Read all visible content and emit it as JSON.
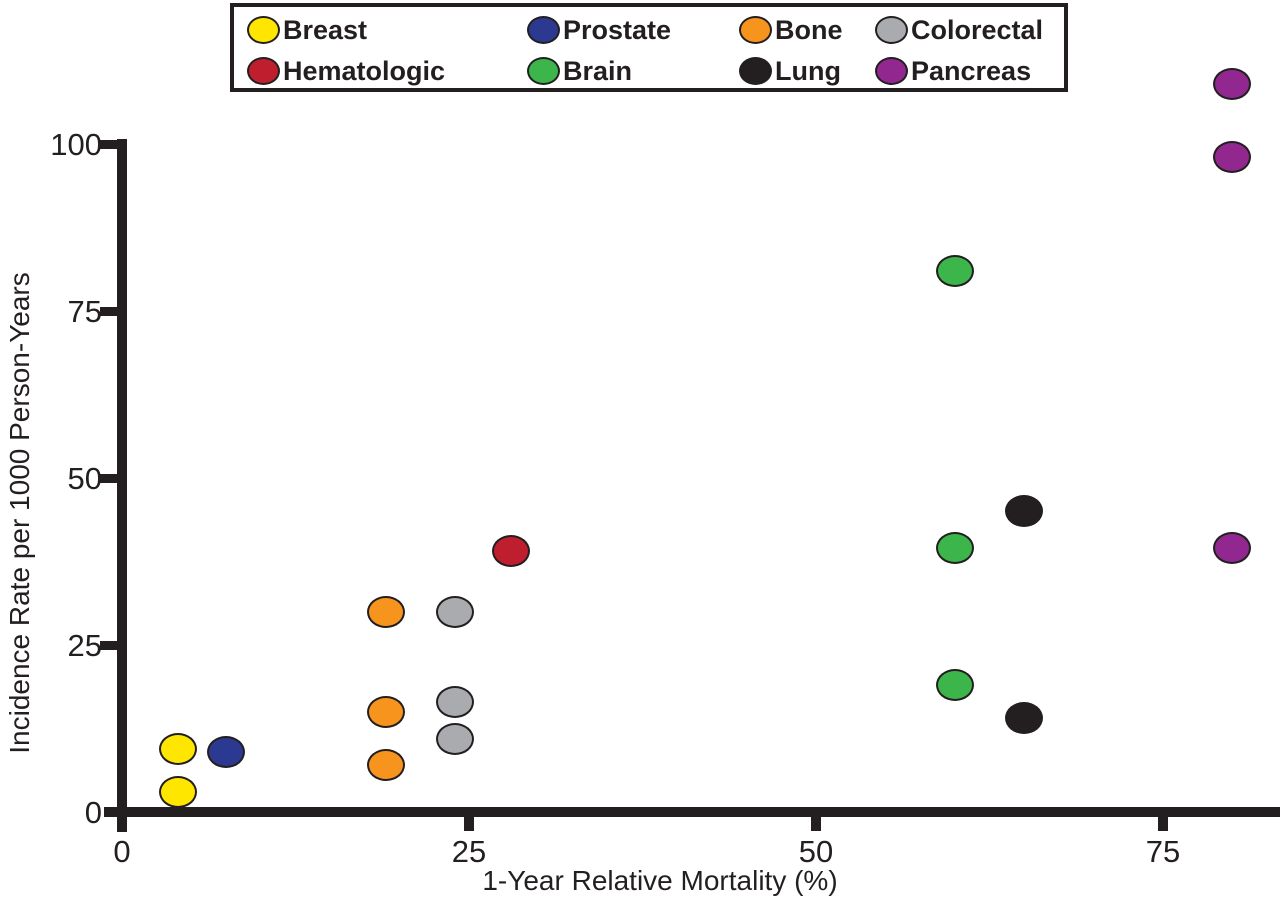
{
  "figure": {
    "background": "#ffffff",
    "text_color": "#231F20"
  },
  "legend": {
    "items": [
      {
        "label": "Breast",
        "color": "#FFE600"
      },
      {
        "label": "Prostate",
        "color": "#2B3990"
      },
      {
        "label": "Bone",
        "color": "#F7941D"
      },
      {
        "label": "Colorectal",
        "color": "#A9ABAE"
      },
      {
        "label": "Hematologic",
        "color": "#BE1E2D"
      },
      {
        "label": "Brain",
        "color": "#3CB54A"
      },
      {
        "label": "Lung",
        "color": "#231F20"
      },
      {
        "label": "Pancreas",
        "color": "#92278F"
      }
    ]
  },
  "axes": {
    "x": {
      "title": "1-Year Relative Mortality (%)",
      "ticks": [
        0,
        25,
        50,
        75
      ]
    },
    "y": {
      "title": "Incidence Rate per 1000 Person-Years",
      "ticks": [
        0,
        25,
        50,
        75,
        100
      ]
    }
  },
  "chart_data": {
    "type": "scatter",
    "title": "",
    "xlabel": "1-Year Relative Mortality (%)",
    "ylabel": "Incidence Rate per 1000 Person-Years",
    "xlim": [
      0,
      83.5
    ],
    "ylim": [
      0,
      100
    ],
    "grid": false,
    "legend_position": "top",
    "series": [
      {
        "name": "Breast",
        "color": "#FFE600",
        "points": [
          [
            4,
            9.5
          ],
          [
            4,
            3
          ]
        ]
      },
      {
        "name": "Prostate",
        "color": "#2B3990",
        "points": [
          [
            7.5,
            9
          ]
        ]
      },
      {
        "name": "Bone",
        "color": "#F7941D",
        "points": [
          [
            19,
            30
          ],
          [
            19,
            15
          ],
          [
            19,
            7
          ]
        ]
      },
      {
        "name": "Colorectal",
        "color": "#A9ABAE",
        "points": [
          [
            24,
            30
          ],
          [
            24,
            16.5
          ],
          [
            24,
            11
          ]
        ]
      },
      {
        "name": "Hematologic",
        "color": "#BE1E2D",
        "points": [
          [
            28,
            39
          ]
        ]
      },
      {
        "name": "Brain",
        "color": "#3CB54A",
        "points": [
          [
            60,
            81
          ],
          [
            60,
            39.5
          ],
          [
            60,
            19
          ]
        ]
      },
      {
        "name": "Lung",
        "color": "#231F20",
        "points": [
          [
            65,
            45
          ],
          [
            65,
            14
          ]
        ]
      },
      {
        "name": "Pancreas",
        "color": "#92278F",
        "points": [
          [
            80,
            109
          ],
          [
            80,
            98
          ],
          [
            80,
            39.5
          ]
        ]
      }
    ]
  }
}
